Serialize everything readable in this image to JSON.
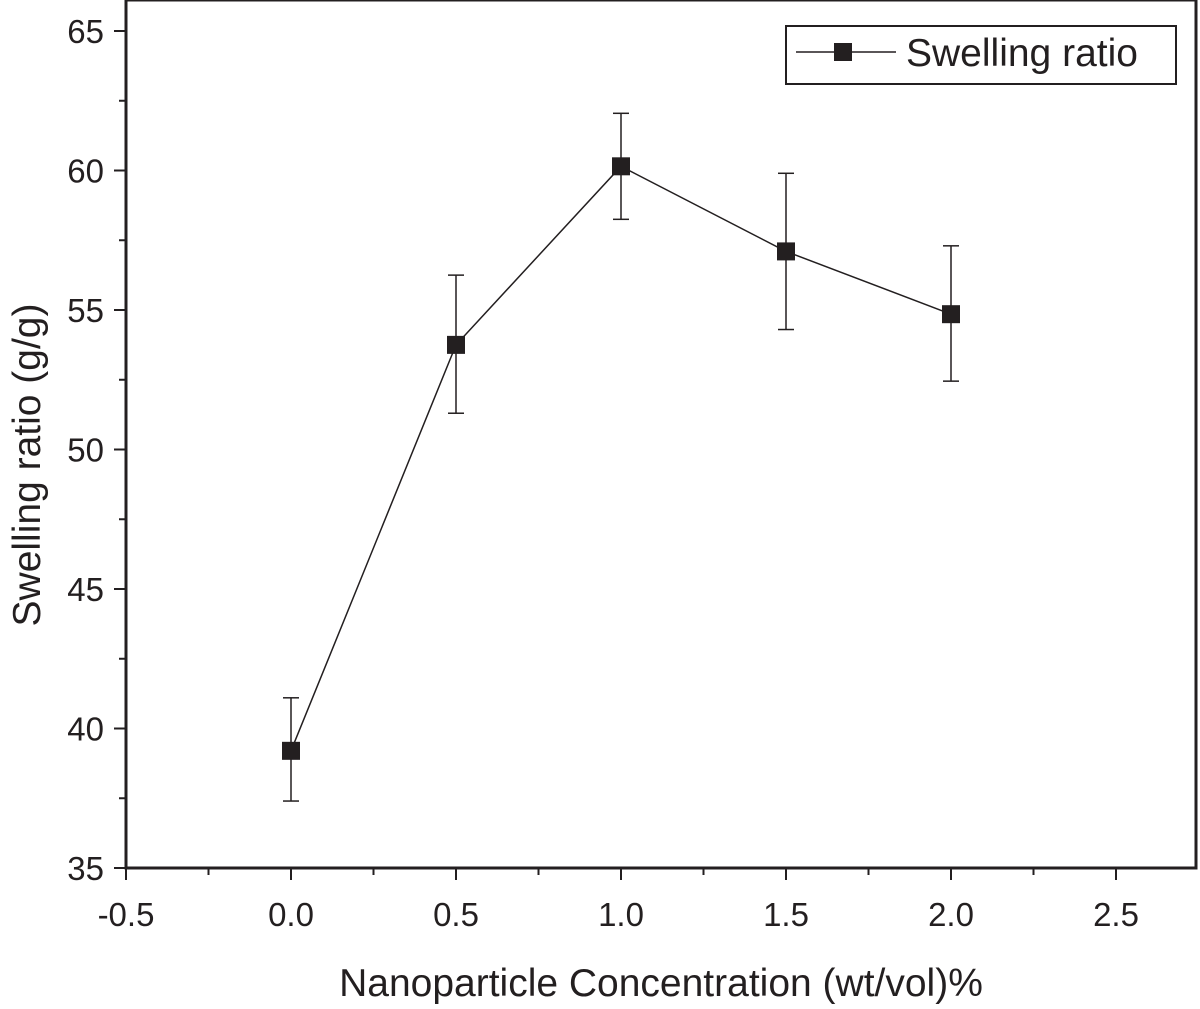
{
  "chart_data": {
    "type": "line",
    "title": "",
    "xlabel": "Nanoparticle Concentration (wt/vol)%",
    "ylabel": "Swelling ratio (g/g)",
    "xlim": [
      -0.5,
      2.75
    ],
    "ylim": [
      35,
      65
    ],
    "xticks": [
      -0.5,
      0.0,
      0.5,
      1.0,
      1.5,
      2.0,
      2.5
    ],
    "xtick_labels": [
      "-0.5",
      "0.0",
      "0.5",
      "1.0",
      "1.5",
      "2.0",
      "2.5"
    ],
    "yticks": [
      35,
      40,
      45,
      50,
      55,
      60,
      65
    ],
    "ytick_labels": [
      "35",
      "40",
      "45",
      "50",
      "55",
      "60",
      "65"
    ],
    "grid": false,
    "legend": {
      "position": "top-right",
      "entries": [
        "Swelling ratio"
      ]
    },
    "series": [
      {
        "name": "Swelling ratio",
        "marker": "square",
        "color": "#231f20",
        "x": [
          0.0,
          0.5,
          1.0,
          1.5,
          2.0
        ],
        "y": [
          39.2,
          53.75,
          60.15,
          57.1,
          54.85
        ],
        "err_low": [
          37.4,
          51.3,
          58.25,
          54.3,
          52.45
        ],
        "err_high": [
          41.1,
          56.25,
          62.05,
          59.9,
          57.3
        ]
      }
    ]
  }
}
